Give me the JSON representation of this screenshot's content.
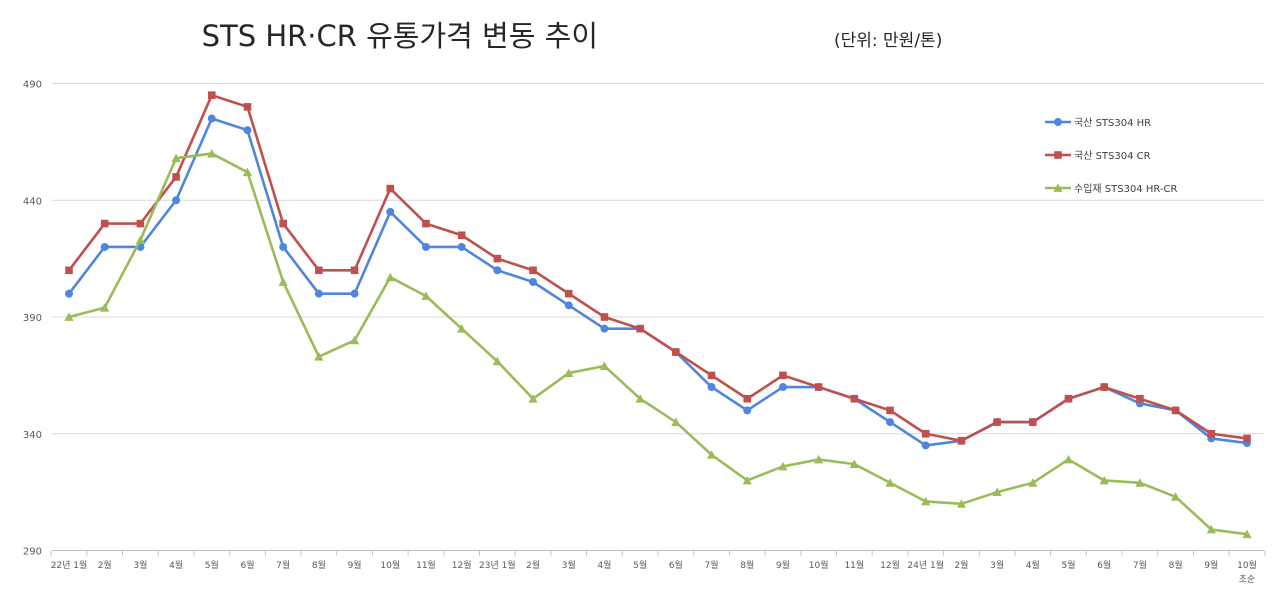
{
  "chart_data": {
    "type": "line",
    "title": "STS HR·CR 유통가격 변동 추이",
    "subtitle": "(단위: 만원/톤)",
    "xlabel": "",
    "ylabel": "",
    "ylim": [
      290,
      490
    ],
    "yticks": [
      290,
      340,
      390,
      440,
      490
    ],
    "grid": true,
    "legend_position": "right",
    "categories": [
      [
        "22년 1월"
      ],
      [
        "2월"
      ],
      [
        "3월"
      ],
      [
        "4월"
      ],
      [
        "5월"
      ],
      [
        "6월"
      ],
      [
        "7월"
      ],
      [
        "8월"
      ],
      [
        "9월"
      ],
      [
        "10월"
      ],
      [
        "11월"
      ],
      [
        "12월"
      ],
      [
        "23년 1월"
      ],
      [
        "2월"
      ],
      [
        "3월"
      ],
      [
        "4월"
      ],
      [
        "5월"
      ],
      [
        "6월"
      ],
      [
        "7월"
      ],
      [
        "8월"
      ],
      [
        "9월"
      ],
      [
        "10월"
      ],
      [
        "11월"
      ],
      [
        "12월"
      ],
      [
        "24년 1월"
      ],
      [
        "2월"
      ],
      [
        "3월"
      ],
      [
        "4월"
      ],
      [
        "5월"
      ],
      [
        "6월"
      ],
      [
        "7월"
      ],
      [
        "8월"
      ],
      [
        "9월"
      ],
      [
        "10월",
        "초순"
      ]
    ],
    "series": [
      {
        "name": "국산 STS304 HR",
        "color": "#4f86dd",
        "marker": "circle",
        "values": [
          400,
          420,
          420,
          440,
          475,
          470,
          420,
          400,
          400,
          435,
          420,
          420,
          410,
          405,
          395,
          385,
          385,
          375,
          360,
          350,
          360,
          360,
          355,
          345,
          335,
          337,
          345,
          345,
          355,
          360,
          353,
          350,
          338,
          336
        ]
      },
      {
        "name": "국산 STS304 CR",
        "color": "#c0504d",
        "marker": "square",
        "values": [
          410,
          430,
          430,
          450,
          485,
          480,
          430,
          410,
          410,
          445,
          430,
          425,
          415,
          410,
          400,
          390,
          385,
          375,
          365,
          355,
          365,
          360,
          355,
          350,
          340,
          337,
          345,
          345,
          355,
          360,
          355,
          350,
          340,
          338
        ]
      },
      {
        "name": "수입재 STS304 HR-CR",
        "color": "#9bbb59",
        "marker": "triangle",
        "values": [
          390,
          394,
          423,
          458,
          460,
          452,
          405,
          373,
          380,
          407,
          399,
          385,
          371,
          355,
          366,
          369,
          355,
          345,
          331,
          320,
          326,
          329,
          327,
          319,
          311,
          310,
          315,
          319,
          329,
          320,
          319,
          313,
          299,
          297
        ]
      }
    ]
  }
}
